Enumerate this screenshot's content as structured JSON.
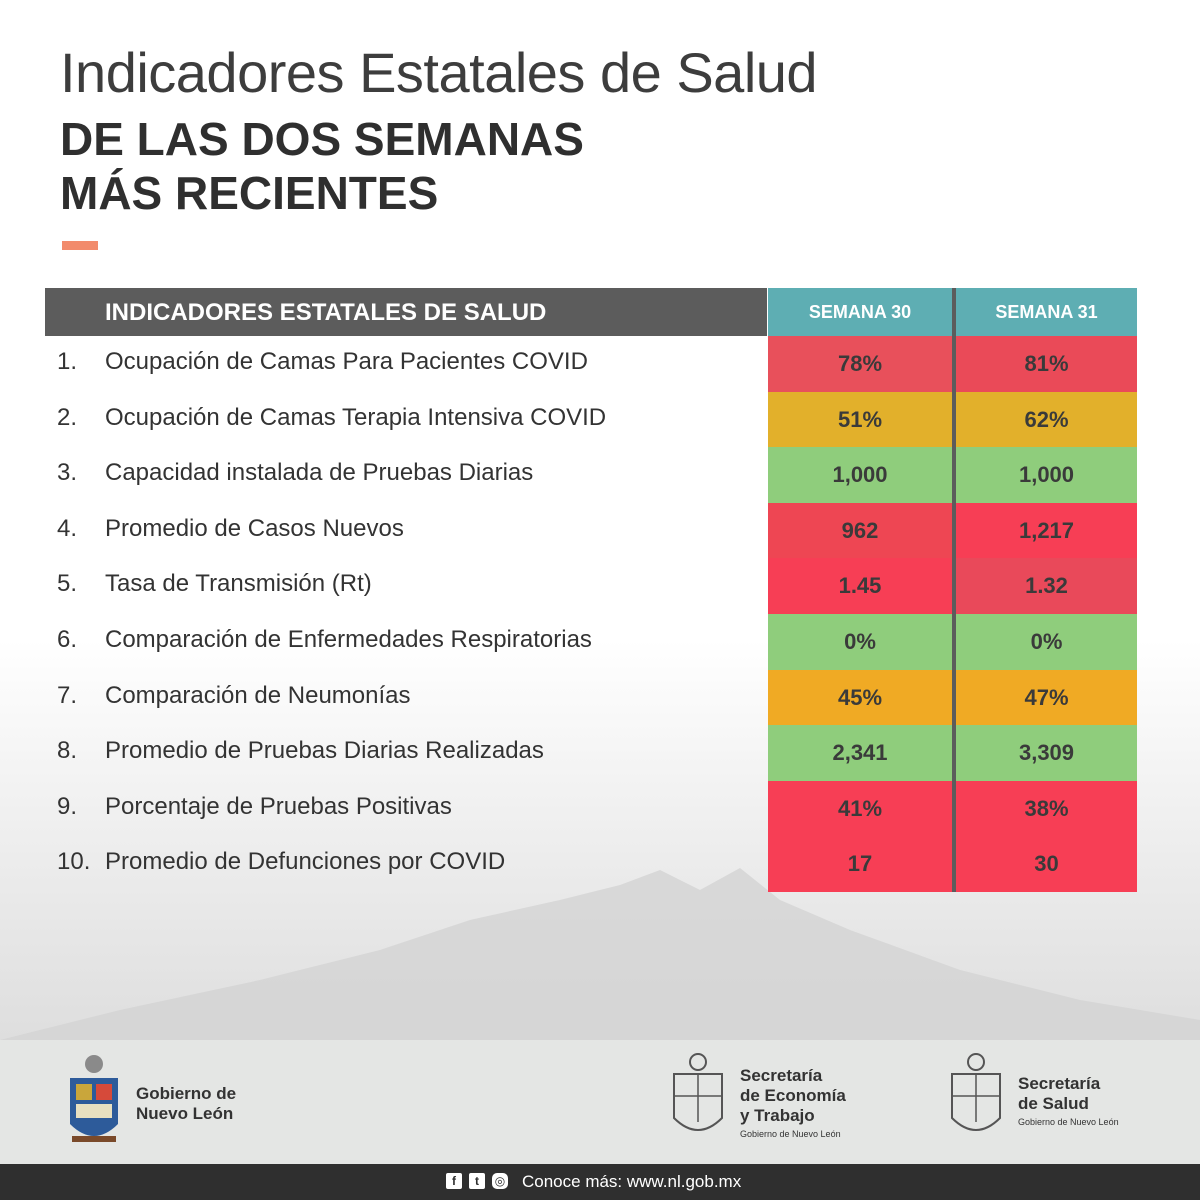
{
  "title": {
    "line1": "Indicadores Estatales de Salud",
    "line2": "DE LAS DOS SEMANAS",
    "line3": "MÁS RECIENTES"
  },
  "table": {
    "header": "INDICADORES ESTATALES DE SALUD",
    "week_a": "SEMANA 30",
    "week_b": "SEMANA 31",
    "rows": [
      {
        "num": "1.",
        "label": "Ocupación de Camas Para Pacientes COVID",
        "a": "78%",
        "b": "81%",
        "color_a": "#e8505b",
        "color_b": "#ea4a58"
      },
      {
        "num": "2.",
        "label": "Ocupación de Camas Terapia Intensiva COVID",
        "a": "51%",
        "b": "62%",
        "color_a": "#e2b02b",
        "color_b": "#e2b02b"
      },
      {
        "num": "3.",
        "label": "Capacidad instalada de Pruebas Diarias",
        "a": "1,000",
        "b": "1,000",
        "color_a": "#8fcd7c",
        "color_b": "#8fcd7c"
      },
      {
        "num": "4.",
        "label": "Promedio de Casos Nuevos",
        "a": "962",
        "b": "1,217",
        "color_a": "#ee4653",
        "color_b": "#f73e55"
      },
      {
        "num": "5.",
        "label": "Tasa de Transmisión (Rt)",
        "a": "1.45",
        "b": "1.32",
        "color_a": "#f73e55",
        "color_b": "#e9495a"
      },
      {
        "num": "6.",
        "label": "Comparación de Enfermedades Respiratorias",
        "a": "0%",
        "b": "0%",
        "color_a": "#8fcd7c",
        "color_b": "#8fcd7c"
      },
      {
        "num": "7.",
        "label": "Comparación de Neumonías",
        "a": "45%",
        "b": "47%",
        "color_a": "#f0aa24",
        "color_b": "#f0aa24"
      },
      {
        "num": "8.",
        "label": "Promedio de Pruebas Diarias Realizadas",
        "a": "2,341",
        "b": "3,309",
        "color_a": "#8fcd7c",
        "color_b": "#8fcd7c"
      },
      {
        "num": "9.",
        "label": "Porcentaje de Pruebas Positivas",
        "a": "41%",
        "b": "38%",
        "color_a": "#f73e55",
        "color_b": "#f73e55"
      },
      {
        "num": "10.",
        "label": "Promedio de Defunciones por COVID",
        "a": "17",
        "b": "30",
        "color_a": "#f73e55",
        "color_b": "#f73e55"
      }
    ]
  },
  "footer": {
    "org1_line1": "Gobierno de",
    "org1_line2": "Nuevo León",
    "org2_line1": "Secretaría",
    "org2_line2": "de Economía",
    "org2_line3": "y Trabajo",
    "org2_sub": "Gobierno de Nuevo León",
    "org3_line1": "Secretaría",
    "org3_line2": "de Salud",
    "org3_sub": "Gobierno de Nuevo León"
  },
  "bottom": {
    "more_text": "Conoce más: www.nl.gob.mx",
    "icons": [
      "facebook-icon",
      "twitter-icon",
      "instagram-icon"
    ]
  }
}
